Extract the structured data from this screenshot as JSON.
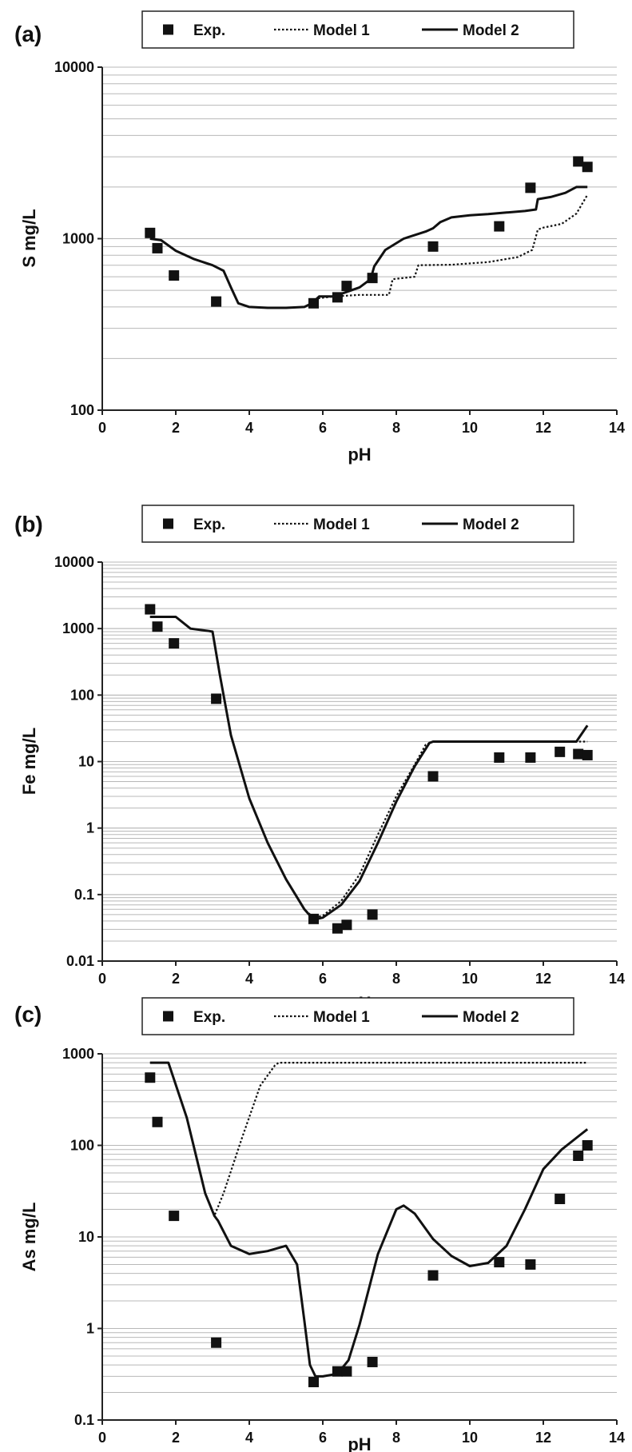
{
  "colors": {
    "ink": "#111111",
    "grid": "#b8b8b8"
  },
  "legend": {
    "exp": "Exp.",
    "model1": "Model 1",
    "model2": "Model 2"
  },
  "chart_data": [
    {
      "panel": "(a)",
      "type": "scatter",
      "xlabel": "pH",
      "ylabel": "S mg/L",
      "xlim": [
        0,
        14
      ],
      "ylim": [
        100,
        10000
      ],
      "yscale": "log",
      "xticks": [
        0,
        2,
        4,
        6,
        8,
        10,
        12,
        14
      ],
      "yticks": [
        100,
        1000,
        10000
      ],
      "grid": "horizontal minor log",
      "legend_position": "top",
      "series": [
        {
          "name": "Exp.",
          "style": "square-markers",
          "x": [
            1.3,
            1.5,
            1.95,
            3.1,
            5.75,
            6.4,
            6.65,
            7.35,
            9.0,
            10.8,
            11.65,
            12.95,
            13.2
          ],
          "y": [
            1080,
            880,
            610,
            430,
            420,
            455,
            530,
            590,
            900,
            1180,
            1980,
            2820,
            2620
          ]
        },
        {
          "name": "Model 1",
          "style": "dotted-line",
          "x": [
            1.3,
            1.6,
            2.0,
            2.5,
            3.0,
            3.3,
            3.5,
            3.7,
            4.0,
            4.5,
            5.0,
            5.5,
            5.7,
            5.9,
            6.3,
            7.0,
            7.5,
            7.8,
            7.9,
            8.5,
            8.6,
            9.5,
            10.5,
            11.3,
            11.7,
            11.85,
            12.0,
            12.5,
            12.9,
            13.2
          ],
          "y": [
            1000,
            980,
            850,
            760,
            700,
            650,
            520,
            420,
            400,
            395,
            395,
            400,
            420,
            450,
            460,
            470,
            470,
            470,
            580,
            600,
            700,
            705,
            730,
            780,
            860,
            1130,
            1160,
            1220,
            1400,
            1800
          ]
        },
        {
          "name": "Model 2",
          "style": "solid-line",
          "x": [
            1.3,
            1.6,
            2.0,
            2.5,
            3.0,
            3.3,
            3.5,
            3.7,
            4.0,
            4.5,
            5.0,
            5.5,
            5.7,
            5.9,
            6.3,
            7.0,
            7.3,
            7.4,
            7.7,
            8.2,
            8.8,
            9.0,
            9.2,
            9.5,
            10.0,
            10.5,
            11.0,
            11.5,
            11.8,
            11.85,
            12.2,
            12.6,
            12.9,
            13.2
          ],
          "y": [
            1000,
            980,
            850,
            760,
            700,
            650,
            520,
            420,
            400,
            395,
            395,
            400,
            420,
            460,
            460,
            520,
            580,
            690,
            860,
            1000,
            1100,
            1150,
            1250,
            1330,
            1370,
            1390,
            1420,
            1450,
            1480,
            1700,
            1750,
            1850,
            2000,
            2000
          ]
        }
      ]
    },
    {
      "panel": "(b)",
      "type": "scatter",
      "xlabel": "pH",
      "ylabel": "Fe mg/L",
      "xlim": [
        0,
        14
      ],
      "ylim": [
        0.01,
        10000
      ],
      "yscale": "log",
      "xticks": [
        0,
        2,
        4,
        6,
        8,
        10,
        12,
        14
      ],
      "yticks": [
        0.01,
        0.1,
        1,
        10,
        100,
        1000,
        10000
      ],
      "grid": "horizontal minor log",
      "legend_position": "top",
      "series": [
        {
          "name": "Exp.",
          "style": "square-markers",
          "x": [
            1.3,
            1.5,
            1.95,
            3.1,
            5.75,
            6.4,
            6.65,
            7.35,
            9.0,
            10.8,
            11.65,
            12.45,
            12.95,
            13.2
          ],
          "y": [
            1950,
            1070,
            600,
            88,
            0.043,
            0.031,
            0.035,
            0.05,
            6.0,
            11.5,
            11.5,
            14.0,
            13.0,
            12.5
          ]
        },
        {
          "name": "Model 1",
          "style": "dotted-line",
          "x": [
            1.3,
            1.7,
            2.0,
            2.4,
            2.9,
            3.0,
            3.2,
            3.5,
            4.0,
            4.5,
            5.0,
            5.5,
            5.75,
            6.0,
            6.5,
            7.0,
            7.5,
            8.0,
            8.5,
            8.8,
            9.0,
            10.0,
            11.0,
            12.0,
            13.0,
            13.2
          ],
          "y": [
            1500,
            1500,
            1500,
            1000,
            920,
            900,
            200,
            25,
            2.8,
            0.6,
            0.17,
            0.06,
            0.045,
            0.048,
            0.08,
            0.2,
            0.8,
            3.0,
            9.0,
            18,
            20,
            20,
            20,
            20,
            20,
            20
          ]
        },
        {
          "name": "Model 2",
          "style": "solid-line",
          "x": [
            1.3,
            1.7,
            2.0,
            2.4,
            2.9,
            3.0,
            3.2,
            3.5,
            4.0,
            4.5,
            5.0,
            5.5,
            5.75,
            6.0,
            6.5,
            7.0,
            7.5,
            8.0,
            8.5,
            8.9,
            9.0,
            10.0,
            11.0,
            12.0,
            12.9,
            13.2
          ],
          "y": [
            1500,
            1500,
            1500,
            1000,
            920,
            900,
            200,
            25,
            2.8,
            0.6,
            0.17,
            0.06,
            0.042,
            0.045,
            0.07,
            0.16,
            0.6,
            2.5,
            8.5,
            19,
            20,
            20,
            20,
            20,
            20,
            35
          ]
        }
      ]
    },
    {
      "panel": "(c)",
      "type": "scatter",
      "xlabel": "pH",
      "ylabel": "As mg/L",
      "xlim": [
        0,
        14
      ],
      "ylim": [
        0.1,
        1000
      ],
      "yscale": "log",
      "xticks": [
        0,
        2,
        4,
        6,
        8,
        10,
        12,
        14
      ],
      "yticks": [
        0.1,
        1,
        10,
        100,
        1000
      ],
      "grid": "horizontal minor log",
      "legend_position": "top",
      "series": [
        {
          "name": "Exp.",
          "style": "square-markers",
          "x": [
            1.3,
            1.5,
            1.95,
            3.1,
            5.75,
            6.4,
            6.65,
            7.35,
            9.0,
            10.8,
            11.65,
            12.45,
            12.95,
            13.2
          ],
          "y": [
            550,
            180,
            17,
            0.7,
            0.26,
            0.34,
            0.34,
            0.43,
            3.8,
            5.3,
            5.0,
            26,
            77,
            100
          ]
        },
        {
          "name": "Model 1",
          "style": "dotted-line",
          "x": [
            1.3,
            1.8,
            2.3,
            2.8,
            3.05,
            3.3,
            3.8,
            4.3,
            4.7,
            4.8,
            6.0,
            8.0,
            10.0,
            12.0,
            13.2
          ],
          "y": [
            800,
            800,
            200,
            30,
            17,
            30,
            120,
            450,
            750,
            800,
            800,
            800,
            800,
            800,
            800
          ]
        },
        {
          "name": "Model 2",
          "style": "solid-line",
          "x": [
            1.3,
            1.8,
            2.3,
            2.8,
            3.05,
            3.15,
            3.5,
            4.0,
            4.5,
            5.0,
            5.3,
            5.5,
            5.65,
            5.8,
            6.0,
            6.4,
            6.7,
            7.0,
            7.5,
            8.0,
            8.2,
            8.5,
            9.0,
            9.5,
            10.0,
            10.5,
            11.0,
            11.5,
            12.0,
            12.5,
            13.0,
            13.2
          ],
          "y": [
            800,
            800,
            200,
            30,
            17,
            15,
            8,
            6.5,
            7,
            8,
            5,
            1.2,
            0.4,
            0.3,
            0.3,
            0.32,
            0.45,
            1.1,
            6.5,
            20,
            22,
            18,
            9.5,
            6.2,
            4.8,
            5.2,
            8,
            20,
            55,
            90,
            130,
            150
          ]
        }
      ]
    }
  ]
}
